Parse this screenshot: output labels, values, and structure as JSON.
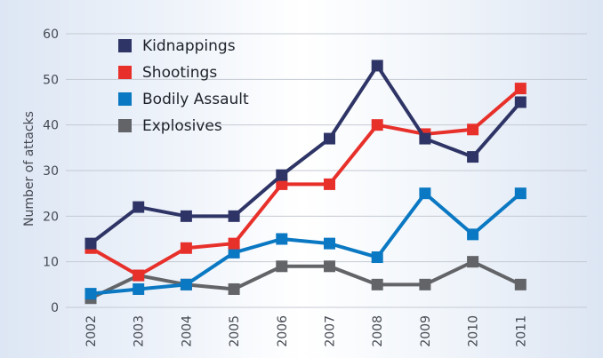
{
  "chart_data": {
    "type": "line",
    "title": "",
    "xlabel": "",
    "ylabel": "Number of attacks",
    "categories": [
      "2002",
      "2003",
      "2004",
      "2005",
      "2006",
      "2007",
      "2008",
      "2009",
      "2010",
      "2011"
    ],
    "ylim": [
      0,
      60
    ],
    "yticks": [
      "0",
      "10",
      "20",
      "30",
      "40",
      "50",
      "60"
    ],
    "grid": "horizontal",
    "legend_position": "top-left",
    "series": [
      {
        "name": "Kidnappings",
        "color": "#2e3566",
        "values": [
          14,
          22,
          20,
          20,
          29,
          37,
          53,
          37,
          33,
          45
        ]
      },
      {
        "name": "Shootings",
        "color": "#e8302b",
        "values": [
          13,
          7,
          13,
          14,
          27,
          27,
          40,
          38,
          39,
          48
        ]
      },
      {
        "name": "Bodily Assault",
        "color": "#0a78c2",
        "values": [
          3,
          4,
          5,
          12,
          15,
          14,
          11,
          25,
          16,
          25
        ]
      },
      {
        "name": "Explosives",
        "color": "#626468",
        "values": [
          2,
          7,
          5,
          4,
          9,
          9,
          5,
          5,
          10,
          5
        ]
      }
    ]
  }
}
